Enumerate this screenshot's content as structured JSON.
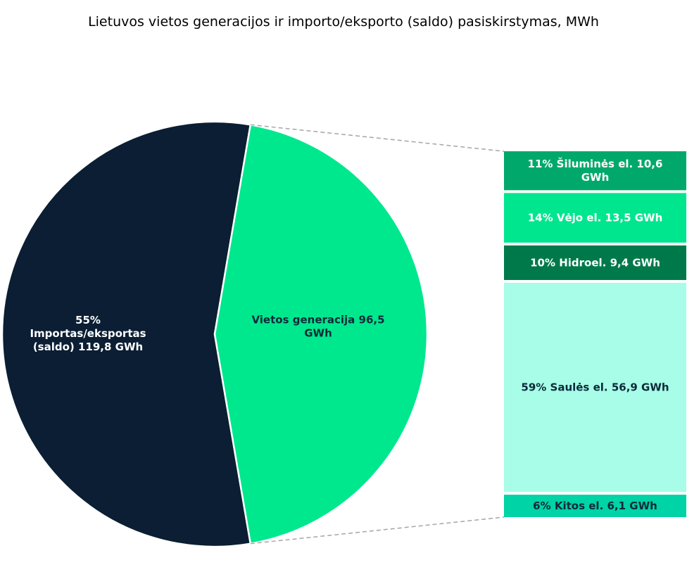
{
  "chart_data": {
    "type": "pie-of-bar",
    "title": "Lietuvos vietos generacijos ir importo/eksporto (saldo) pasiskirstymas, MWh",
    "pie": [
      {
        "name": "Importas/eksportas (saldo)",
        "label_lines": [
          "55%",
          "Importas/eksportas",
          "(saldo)  119,8 GWh"
        ],
        "value": 119.8,
        "percent": 55,
        "color": "#0b1e33",
        "text_color": "#ffffff"
      },
      {
        "name": "Vietos generacija",
        "label_lines": [
          "Vietos generacija   96,5",
          "GWh"
        ],
        "value": 96.5,
        "percent": 45,
        "color": "#00e88d",
        "text_color": "#0b2a3a"
      }
    ],
    "bar": [
      {
        "name": "Šiluminės el.",
        "label_lines": [
          "11% Šiluminės el.  10,6",
          "GWh"
        ],
        "value": 10.6,
        "percent": 11,
        "color": "#00a96b",
        "text_color": "#ffffff"
      },
      {
        "name": "Vėjo el.",
        "label_lines": [
          "14% Vėjo el.  13,5 GWh"
        ],
        "value": 13.5,
        "percent": 14,
        "color": "#00e68e",
        "text_color": "#ffffff"
      },
      {
        "name": "Hidroel.",
        "label_lines": [
          "10% Hidroel.  9,4 GWh"
        ],
        "value": 9.4,
        "percent": 10,
        "color": "#00794a",
        "text_color": "#ffffff"
      },
      {
        "name": "Saulės el.",
        "label_lines": [
          "59% Saulės el.  56,9 GWh"
        ],
        "value": 56.9,
        "percent": 59,
        "color": "#a8fde8",
        "text_color": "#0b2a3a"
      },
      {
        "name": "Kitos el.",
        "label_lines": [
          "6% Kitos el.  6,1 GWh"
        ],
        "value": 6.1,
        "percent": 6,
        "color": "#00d3a6",
        "text_color": "#0b2a3a"
      }
    ],
    "connector_color": "#a6a6a6"
  }
}
